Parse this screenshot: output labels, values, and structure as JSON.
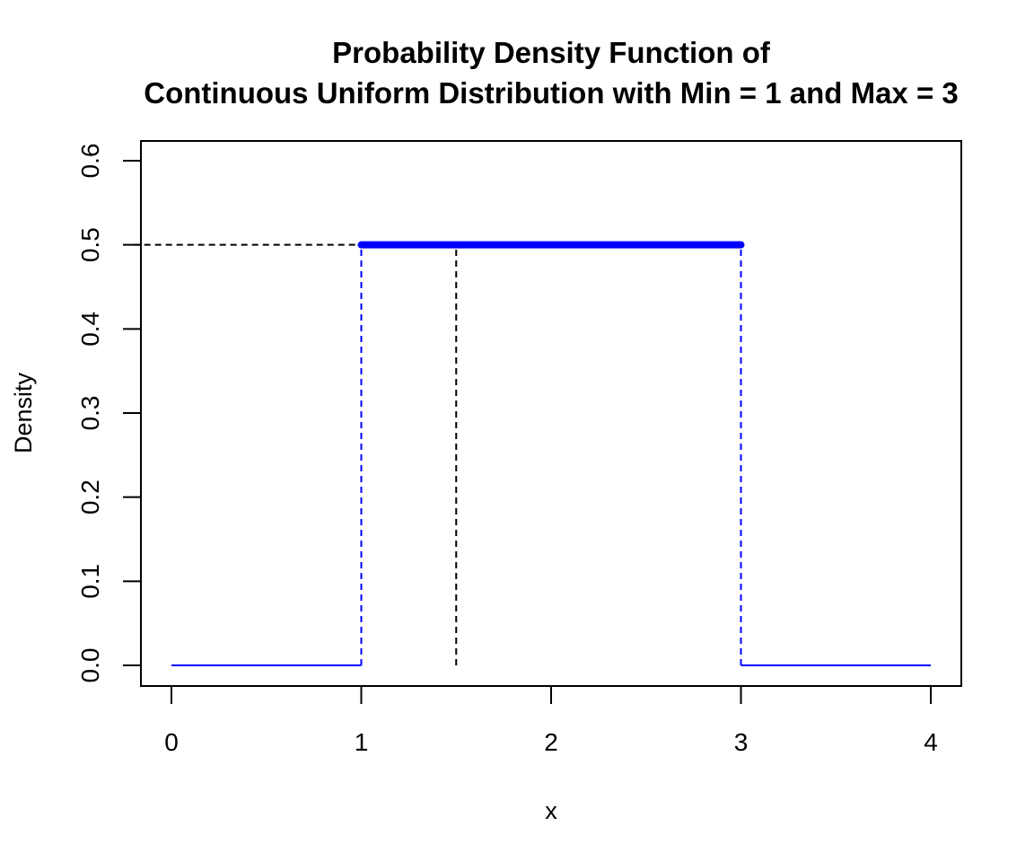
{
  "chart_data": {
    "type": "line",
    "title_line1": "Probability Density Function of",
    "title_line2": "Continuous Uniform Distribution with Min = 1 and Max = 3",
    "xlabel": "x",
    "ylabel": "Density",
    "xlim": [
      0,
      4
    ],
    "ylim": [
      0.0,
      0.6
    ],
    "x_ticks": [
      "0",
      "1",
      "2",
      "3",
      "4"
    ],
    "y_ticks": [
      "0.0",
      "0.1",
      "0.2",
      "0.3",
      "0.4",
      "0.5",
      "0.6"
    ],
    "grid": false,
    "legend": "none",
    "series": [
      {
        "points": [
          [
            0,
            0
          ],
          [
            1,
            0
          ]
        ],
        "style": "solid",
        "color": "#0000ff"
      },
      {
        "points": [
          [
            1,
            0.5
          ],
          [
            3,
            0.5
          ]
        ],
        "style": "solid-thick",
        "color": "#0000ff"
      },
      {
        "points": [
          [
            3,
            0
          ],
          [
            4,
            0
          ]
        ],
        "style": "solid",
        "color": "#0000ff"
      }
    ],
    "reference_lines": [
      {
        "points": [
          [
            1,
            0
          ],
          [
            1,
            0.5
          ]
        ],
        "style": "dashed",
        "color": "#0000ff"
      },
      {
        "points": [
          [
            3,
            0
          ],
          [
            3,
            0.5
          ]
        ],
        "style": "dashed",
        "color": "#0000ff"
      },
      {
        "points": [
          [
            1.5,
            0
          ],
          [
            1.5,
            0.5
          ]
        ],
        "style": "dashed",
        "color": "#000000"
      },
      {
        "points": [
          [
            -0.2,
            0.5
          ],
          [
            1.5,
            0.5
          ]
        ],
        "style": "dashed",
        "color": "#000000"
      }
    ]
  }
}
